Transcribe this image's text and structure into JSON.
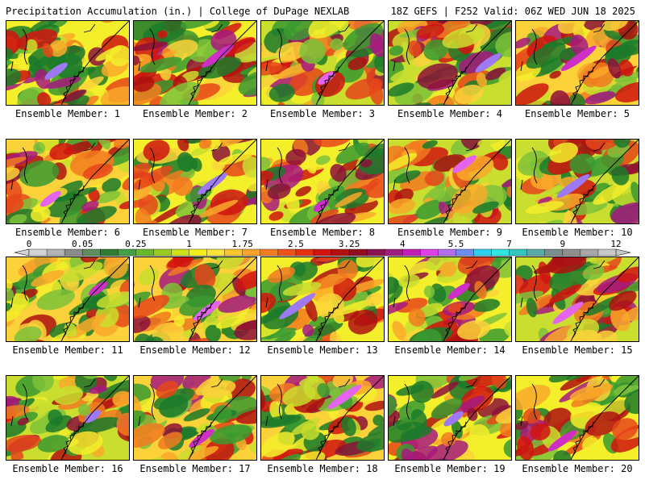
{
  "header": {
    "left": "Precipitation Accumulation (in.) | College of DuPage NEXLAB",
    "right": "18Z GEFS | F252 Valid: 06Z WED JUN 18 2025"
  },
  "panels": [
    {
      "label": "Ensemble Member: 1"
    },
    {
      "label": "Ensemble Member: 2"
    },
    {
      "label": "Ensemble Member: 3"
    },
    {
      "label": "Ensemble Member: 4"
    },
    {
      "label": "Ensemble Member: 5"
    },
    {
      "label": "Ensemble Member: 6"
    },
    {
      "label": "Ensemble Member: 7"
    },
    {
      "label": "Ensemble Member: 8"
    },
    {
      "label": "Ensemble Member: 9"
    },
    {
      "label": "Ensemble Member: 10"
    },
    {
      "label": "Ensemble Member: 11"
    },
    {
      "label": "Ensemble Member: 12"
    },
    {
      "label": "Ensemble Member: 13"
    },
    {
      "label": "Ensemble Member: 14"
    },
    {
      "label": "Ensemble Member: 15"
    },
    {
      "label": "Ensemble Member: 16"
    },
    {
      "label": "Ensemble Member: 17"
    },
    {
      "label": "Ensemble Member: 18"
    },
    {
      "label": "Ensemble Member: 19"
    },
    {
      "label": "Ensemble Member: 20"
    }
  ],
  "colorbar": {
    "tick_labels": [
      "0",
      "0.05",
      "0.25",
      "1",
      "1.75",
      "2.5",
      "3.25",
      "4",
      "5.5",
      "7",
      "9",
      "12"
    ],
    "colors": [
      "#d4d4d4",
      "#b4b4b4",
      "#8c8c8c",
      "#5f8f5f",
      "#2e7d32",
      "#43a047",
      "#66bb2a",
      "#9ccc22",
      "#cde21c",
      "#f4f01c",
      "#fde23a",
      "#fcc630",
      "#fba22a",
      "#f57c20",
      "#ee5418",
      "#e53012",
      "#d1140e",
      "#b3100f",
      "#8e1020",
      "#8a1450",
      "#a01e80",
      "#c41eb8",
      "#e040e8",
      "#b36ff0",
      "#6f8cf5",
      "#2ed0f0",
      "#2fe6e0",
      "#36c6c0",
      "#5aaaa8",
      "#7a8f8f",
      "#8f8f8f",
      "#a8a8a8",
      "#c8c8c8"
    ]
  }
}
